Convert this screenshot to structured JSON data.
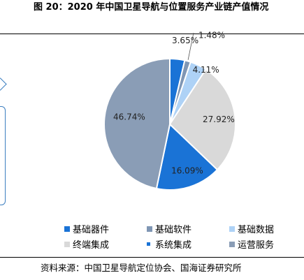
{
  "figure": {
    "title": "图 20：2020 年中国卫星导航与位置服务产业链产值情况",
    "source": "资料来源：中国卫星导航定位协会、国海证券研究所"
  },
  "chart_data": {
    "type": "pie",
    "title": "",
    "legend_position": "bottom",
    "slices": [
      {
        "label": "基础器件",
        "value": 3.65,
        "value_label": "3.65%",
        "color": "#1a73d6"
      },
      {
        "label": "基础软件",
        "value": 1.48,
        "value_label": "1.48%",
        "color": "#7f96b4"
      },
      {
        "label": "基础数据",
        "value": 4.11,
        "value_label": "4.11%",
        "color": "#aed2f6"
      },
      {
        "label": "终端集成",
        "value": 27.92,
        "value_label": "27.92%",
        "color": "#d9d9d9"
      },
      {
        "label": "系统集成",
        "value": 16.09,
        "value_label": "16.09%",
        "color": "#1a73d6"
      },
      {
        "label": "运营服务",
        "value": 46.74,
        "value_label": "46.74%",
        "color": "#8a9db6"
      }
    ]
  }
}
